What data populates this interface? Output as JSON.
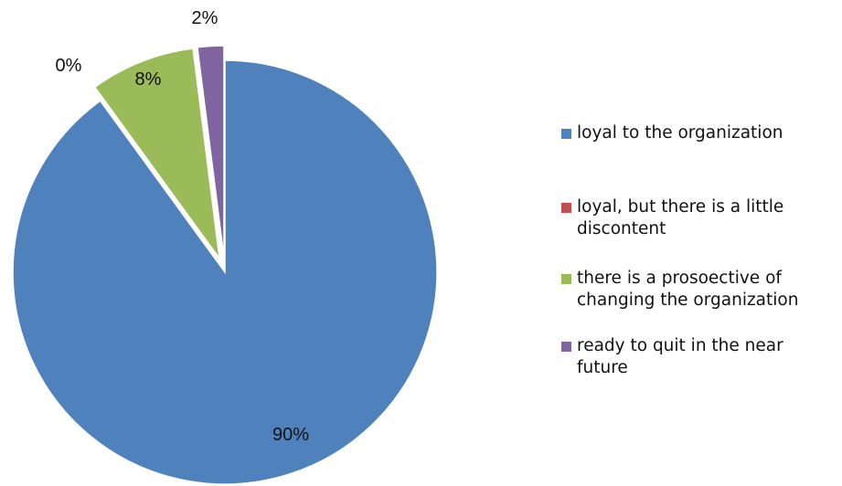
{
  "chart_data": {
    "type": "pie",
    "title": "",
    "categories": [
      "loyal to the organization",
      "loyal, but there is a little discontent",
      "there is a prosoective of changing the organization",
      "ready to quit in the near future"
    ],
    "values": [
      90,
      0,
      8,
      2
    ],
    "data_labels": [
      "90%",
      "0%",
      "8%",
      "2%"
    ],
    "colors": [
      "#4f81bd",
      "#c0504d",
      "#9bbb59",
      "#8064a2"
    ],
    "exploded": true,
    "start_angle": "12 o'clock",
    "direction": "clockwise",
    "legend_position": "right",
    "legend_lines": [
      [
        "loyal to the organization"
      ],
      [
        "loyal, but there is a little",
        "discontent"
      ],
      [
        "there is a prosoective of",
        "changing the organization"
      ],
      [
        "ready to quit in the near",
        "future"
      ]
    ]
  }
}
